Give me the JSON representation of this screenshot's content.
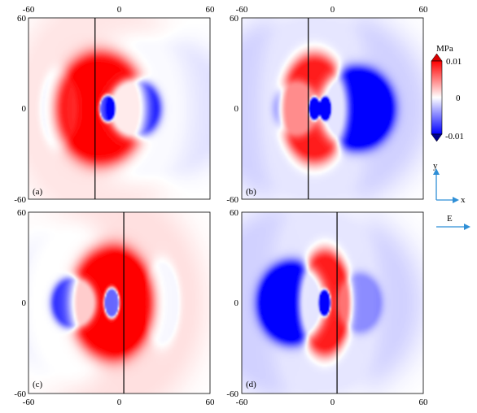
{
  "chart_data": [
    {
      "type": "heatmap",
      "panel_label": "(a)",
      "xlim": [
        -60,
        60
      ],
      "ylim": [
        -60,
        60
      ],
      "x_ticks": [
        "-60",
        "0",
        "60"
      ],
      "y_ticks": [
        "60",
        "0",
        "-60"
      ],
      "fault_x": -16,
      "blobs": [
        {
          "sign": 1,
          "cx": -12,
          "cy": 0,
          "rx": 24,
          "ry": 30,
          "strength": 1.0
        },
        {
          "sign": -1,
          "cx": 10,
          "cy": 0,
          "rx": 14,
          "ry": 16,
          "strength": 0.9
        },
        {
          "sign": -1,
          "cx": -8,
          "cy": 0,
          "rx": 4,
          "ry": 7,
          "strength": 1.6
        },
        {
          "sign": -1,
          "cx": -40,
          "cy": 0,
          "rx": 10,
          "ry": 22,
          "strength": 0.15
        },
        {
          "sign": 1,
          "cx": -12,
          "cy": 0,
          "rx": 48,
          "ry": 62,
          "strength": 0.1
        },
        {
          "sign": -1,
          "cx": 20,
          "cy": 0,
          "rx": 45,
          "ry": 40,
          "strength": 0.12
        }
      ]
    },
    {
      "type": "heatmap",
      "panel_label": "(b)",
      "xlim": [
        -60,
        60
      ],
      "ylim": [
        -60,
        60
      ],
      "x_ticks": [
        "-60",
        "0",
        "60"
      ],
      "y_ticks": [
        "60",
        "0",
        "-60"
      ],
      "fault_x": -16,
      "blobs": [
        {
          "sign": 1,
          "cx": -12,
          "cy": 0,
          "rx": 18,
          "ry": 29,
          "strength": 1.0
        },
        {
          "sign": -1,
          "cx": 16,
          "cy": 0,
          "rx": 20,
          "ry": 22,
          "strength": 1.0
        },
        {
          "sign": -1,
          "cx": -24,
          "cy": 0,
          "rx": 12,
          "ry": 15,
          "strength": 0.45
        },
        {
          "sign": -1,
          "cx": -5,
          "cy": 0,
          "rx": 3,
          "ry": 6,
          "strength": 1.6
        },
        {
          "sign": -1,
          "cx": -12,
          "cy": 0,
          "rx": 3,
          "ry": 6,
          "strength": 1.6
        },
        {
          "sign": -1,
          "cx": -10,
          "cy": 0,
          "rx": 60,
          "ry": 55,
          "strength": 0.18
        },
        {
          "sign": 1,
          "cx": -12,
          "cy": 0,
          "rx": 30,
          "ry": 70,
          "strength": 0.08
        }
      ]
    },
    {
      "type": "heatmap",
      "panel_label": "(c)",
      "xlim": [
        -60,
        60
      ],
      "ylim": [
        -60,
        60
      ],
      "x_ticks": [
        "-60",
        "0",
        "60"
      ],
      "y_ticks": [
        "60",
        "0",
        "-60"
      ],
      "fault_x": 3,
      "blobs": [
        {
          "sign": 1,
          "cx": -5,
          "cy": 0,
          "rx": 22,
          "ry": 30,
          "strength": 1.0
        },
        {
          "sign": -1,
          "cx": -5,
          "cy": 0,
          "rx": 4,
          "ry": 8,
          "strength": 1.6
        },
        {
          "sign": -1,
          "cx": -30,
          "cy": 0,
          "rx": 12,
          "ry": 14,
          "strength": 0.8
        },
        {
          "sign": -1,
          "cx": 28,
          "cy": 0,
          "rx": 10,
          "ry": 24,
          "strength": 0.15
        },
        {
          "sign": 1,
          "cx": -5,
          "cy": 0,
          "rx": 50,
          "ry": 62,
          "strength": 0.12
        },
        {
          "sign": -1,
          "cx": -35,
          "cy": 0,
          "rx": 30,
          "ry": 45,
          "strength": 0.12
        }
      ]
    },
    {
      "type": "heatmap",
      "panel_label": "(d)",
      "xlim": [
        -60,
        60
      ],
      "ylim": [
        -60,
        60
      ],
      "x_ticks": [
        "-60",
        "0",
        "60"
      ],
      "y_ticks": [
        "60",
        "0",
        "-60"
      ],
      "fault_x": 3,
      "blobs": [
        {
          "sign": 1,
          "cx": -5,
          "cy": 0,
          "rx": 14,
          "ry": 28,
          "strength": 1.0
        },
        {
          "sign": -1,
          "cx": -27,
          "cy": 0,
          "rx": 18,
          "ry": 22,
          "strength": 1.0
        },
        {
          "sign": -1,
          "cx": -5,
          "cy": 0,
          "rx": 3,
          "ry": 7,
          "strength": 1.6
        },
        {
          "sign": -1,
          "cx": 18,
          "cy": 0,
          "rx": 12,
          "ry": 16,
          "strength": 0.35
        },
        {
          "sign": -1,
          "cx": -15,
          "cy": 0,
          "rx": 60,
          "ry": 55,
          "strength": 0.18
        },
        {
          "sign": 1,
          "cx": -5,
          "cy": 0,
          "rx": 30,
          "ry": 70,
          "strength": 0.08
        }
      ]
    }
  ],
  "colorbar": {
    "unit": "MPa",
    "max_label": "0.01",
    "mid_label": "0",
    "min_label": "-0.01",
    "colors": {
      "max": "#ff0000",
      "mid": "#ffffff",
      "min": "#0000ff",
      "top_arrow": "#d80000",
      "bottom_arrow": "#00008b"
    }
  },
  "axes_icon": {
    "x_label": "x",
    "y_label": "y",
    "color": "#2f8fd6"
  },
  "east_arrow": {
    "label": "E",
    "color": "#2f8fd6"
  }
}
